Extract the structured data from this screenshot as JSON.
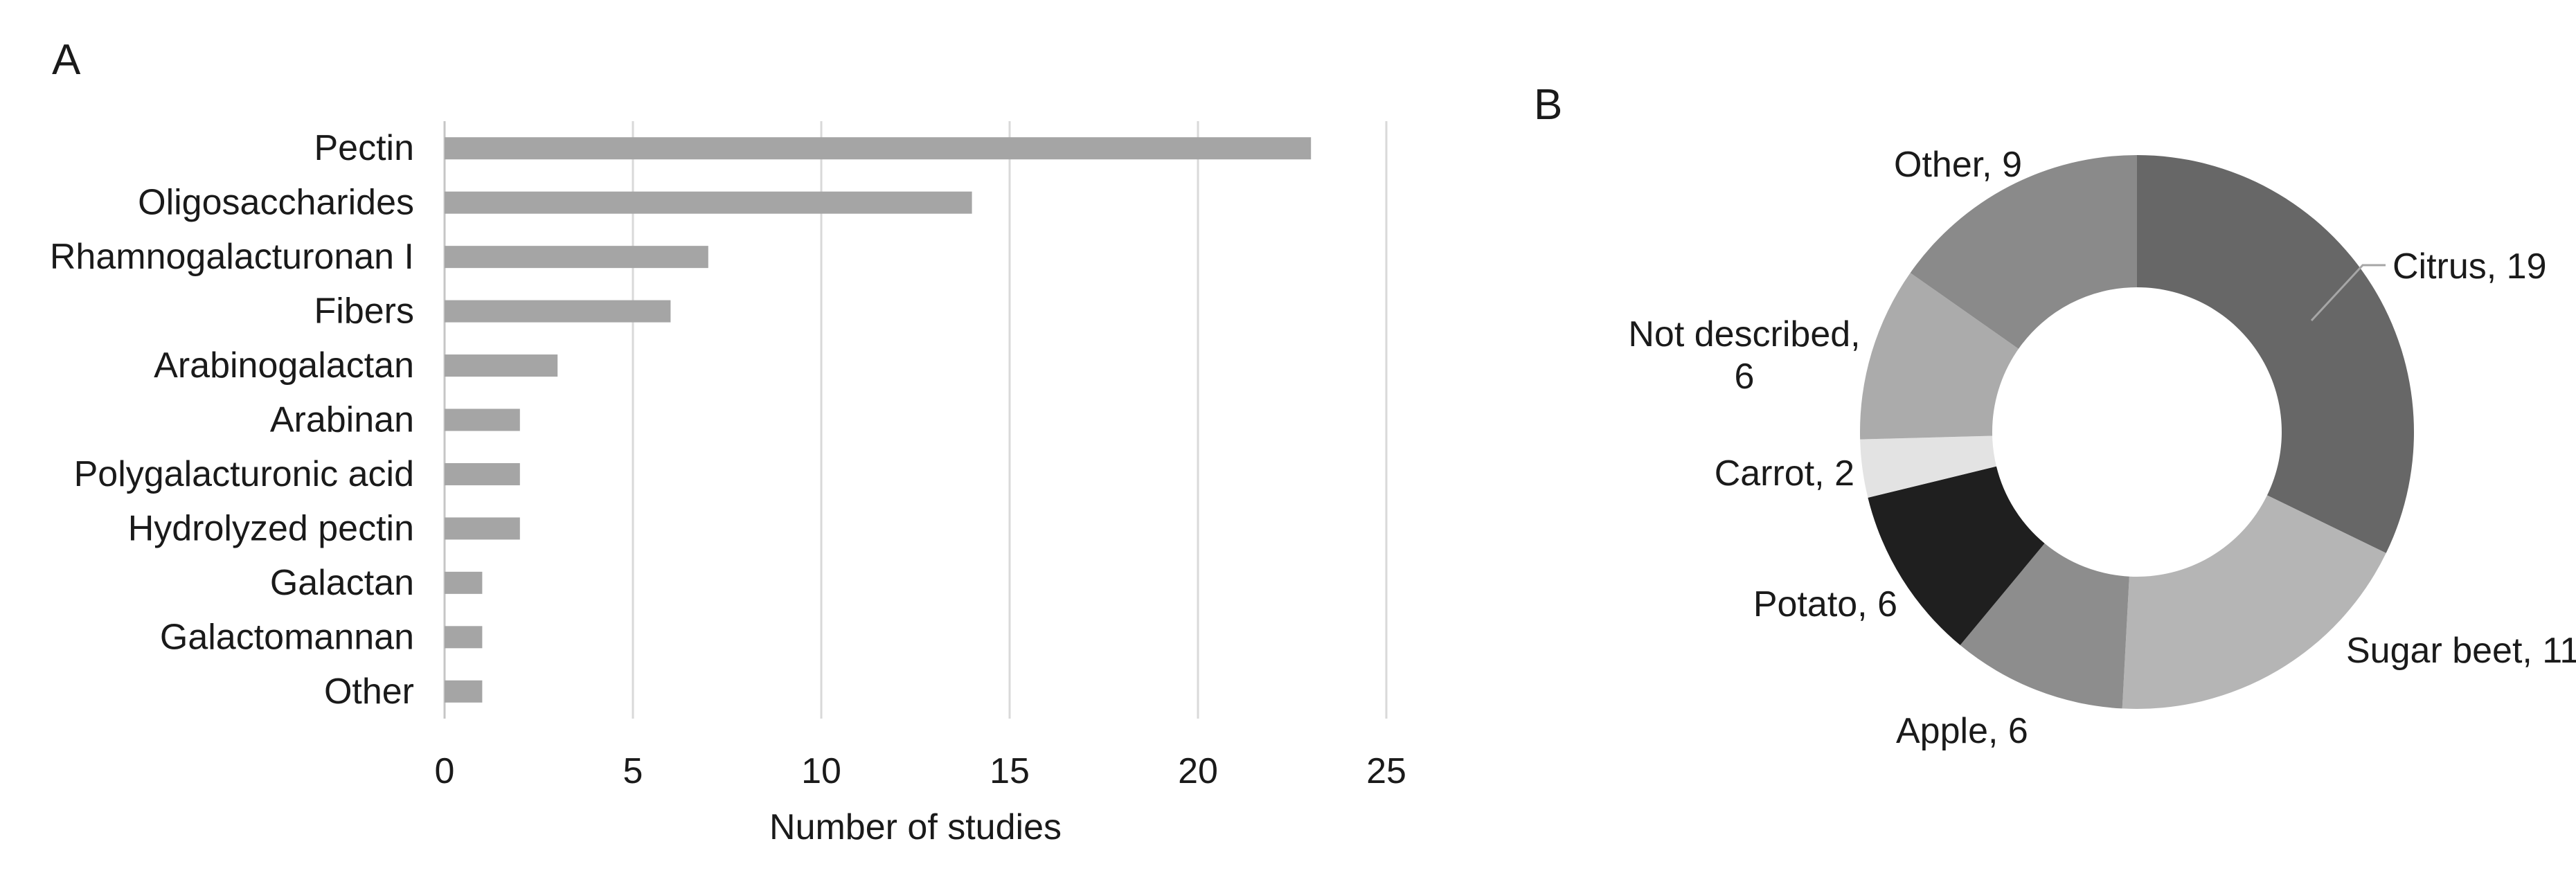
{
  "figure": {
    "panel_a_label": "A",
    "panel_b_label": "B"
  },
  "chart_data": [
    {
      "panel": "A",
      "type": "bar",
      "orientation": "horizontal",
      "title": "",
      "categories": [
        "Pectin",
        "Oligosaccharides",
        "Rhamnogalacturonan I",
        "Fibers",
        "Arabinogalactan",
        "Arabinan",
        "Polygalacturonic acid",
        "Hydrolyzed pectin",
        "Galactan",
        "Galactomannan",
        "Other"
      ],
      "values": [
        23,
        14,
        7,
        6,
        3,
        2,
        2,
        2,
        1,
        1,
        1
      ],
      "xlabel": "Number of studies",
      "ylabel": "",
      "xlim": [
        0,
        25
      ],
      "xticks": [
        0,
        5,
        10,
        15,
        20,
        25
      ],
      "grid": true,
      "legend": "none",
      "bar_color": "#a5a5a5",
      "gridline_color": "#d9d9d9",
      "axis_line_color": "#c6c6c6",
      "text_color": "#1a1a1a"
    },
    {
      "panel": "B",
      "type": "pie",
      "subtype": "donut",
      "title": "",
      "start_angle_deg": 0,
      "direction": "clockwise",
      "label_separator": ", ",
      "leader_line_color": "#a6a6a6",
      "segments": [
        {
          "label": "Citrus",
          "value": 19,
          "color": "#676767"
        },
        {
          "label": "Sugar beet",
          "value": 11,
          "color": "#b5b5b5"
        },
        {
          "label": "Apple",
          "value": 6,
          "color": "#8d8d8d"
        },
        {
          "label": "Potato",
          "value": 6,
          "color": "#1f1f1f"
        },
        {
          "label": "Carrot",
          "value": 2,
          "color": "#e3e3e3"
        },
        {
          "label": "Not described",
          "value": 6,
          "color": "#ababab"
        },
        {
          "label": "Other",
          "value": 9,
          "color": "#8a8a8a"
        }
      ]
    }
  ]
}
